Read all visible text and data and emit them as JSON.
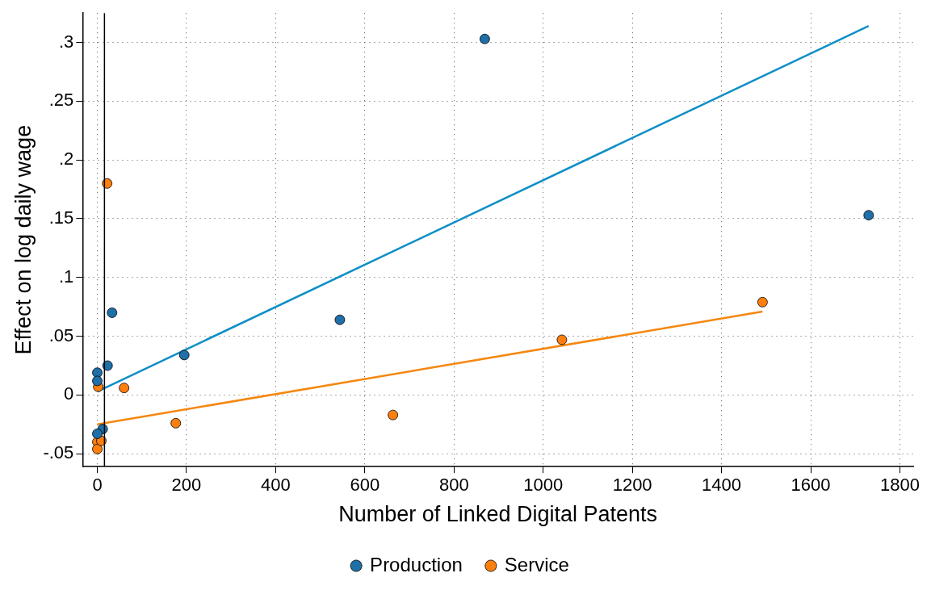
{
  "chart_data": {
    "type": "scatter",
    "xlabel": "Number of Linked Digital Patents",
    "ylabel": "Effect on log daily wage",
    "xlim": [
      -33,
      1830
    ],
    "ylim": [
      -0.061,
      0.325
    ],
    "xticks": [
      0,
      200,
      400,
      600,
      800,
      1000,
      1200,
      1400,
      1600,
      1800
    ],
    "yticks": [
      {
        "value": -0.05,
        "label": "-.05"
      },
      0,
      {
        "value": 0.05,
        "label": ".05"
      },
      {
        "value": 0.1,
        "label": ".1"
      },
      {
        "value": 0.15,
        "label": ".15"
      },
      {
        "value": 0.2,
        "label": ".2"
      },
      {
        "value": 0.25,
        "label": ".25"
      },
      {
        "value": 0.3,
        "label": ".3"
      }
    ],
    "grid": true,
    "legend": "bottom",
    "marker": "circle",
    "ref_lines": [
      {
        "axis": "x",
        "value": 16,
        "color": "#000000"
      }
    ],
    "series": [
      {
        "name": "Production",
        "color": "#1f6fa8",
        "x": [
          0,
          0,
          23,
          33,
          195,
          12,
          0,
          544,
          869,
          1730
        ],
        "values": [
          0.019,
          0.012,
          0.025,
          0.07,
          0.034,
          -0.029,
          -0.033,
          0.064,
          0.303,
          0.153
        ]
      },
      {
        "name": "Service",
        "color": "#ff7f0e",
        "x": [
          2,
          60,
          176,
          0,
          0,
          22,
          663,
          1042,
          1492,
          9
        ],
        "values": [
          0.007,
          0.006,
          -0.024,
          -0.04,
          -0.046,
          0.18,
          -0.017,
          0.047,
          0.079,
          -0.039
        ]
      },
      {
        "type": "line",
        "marker": "none",
        "color": "#0f8fc6",
        "x": [
          0,
          1730
        ],
        "values": [
          0.003,
          0.314
        ]
      },
      {
        "type": "line",
        "marker": "none",
        "color": "#f5870f",
        "x": [
          0,
          1492
        ],
        "values": [
          -0.025,
          0.071
        ]
      }
    ]
  }
}
